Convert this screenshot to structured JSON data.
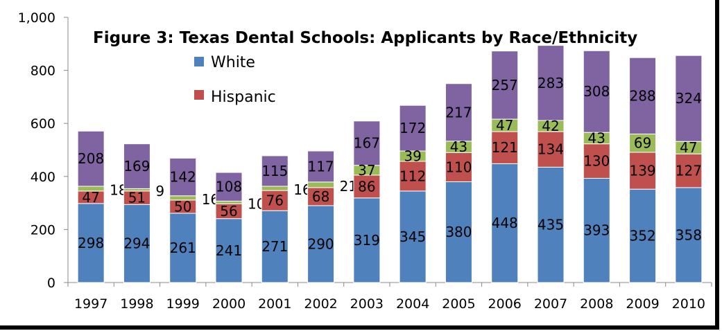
{
  "chart_data": {
    "type": "bar",
    "stacked": true,
    "title": "Figure 3: Texas Dental Schools: Applicants by Race/Ethnicity",
    "xlabel": "",
    "ylabel": "",
    "ylim": [
      0,
      1000
    ],
    "yticks": [
      0,
      200,
      400,
      600,
      800,
      1000
    ],
    "ytick_labels": [
      "0",
      "200",
      "400",
      "600",
      "800",
      "1,000"
    ],
    "grid": false,
    "legend_position": "top-left, inside plot",
    "legend_entries": [
      "White",
      "Hispanic"
    ],
    "categories": [
      "1997",
      "1998",
      "1999",
      "2000",
      "2001",
      "2002",
      "2003",
      "2004",
      "2005",
      "2006",
      "2007",
      "2008",
      "2009",
      "2010"
    ],
    "series": [
      {
        "name": "White",
        "color": "#4f81bd",
        "values": [
          298,
          294,
          261,
          241,
          271,
          290,
          319,
          345,
          380,
          448,
          435,
          393,
          352,
          358
        ]
      },
      {
        "name": "Hispanic",
        "color": "#c0504d",
        "values": [
          47,
          51,
          50,
          56,
          76,
          68,
          86,
          112,
          110,
          121,
          134,
          130,
          139,
          127
        ]
      },
      {
        "color": "#9bbb59",
        "values": [
          18,
          9,
          16,
          10,
          16,
          21,
          37,
          39,
          43,
          47,
          42,
          43,
          69,
          47
        ]
      },
      {
        "color": "#8064a2",
        "values": [
          208,
          169,
          142,
          108,
          115,
          117,
          167,
          172,
          217,
          257,
          283,
          308,
          288,
          324
        ]
      }
    ]
  }
}
